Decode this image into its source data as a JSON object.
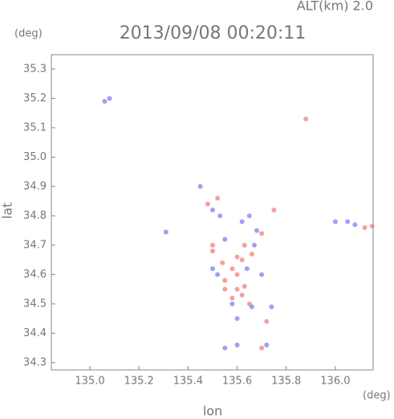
{
  "chart_data": {
    "type": "scatter",
    "annotation": "ALT(km) 2.0",
    "title": "2013/09/08 00:20:11",
    "y_unit": "(deg)",
    "x_unit": "(deg)",
    "ylabel": "lat",
    "xlabel": "lon",
    "xlim": [
      134.843,
      136.154
    ],
    "ylim": [
      34.275,
      35.349
    ],
    "xticks": [
      {
        "value": 135,
        "label": "135.0"
      },
      135.2,
      135.4,
      135.6,
      135.8,
      {
        "value": 136,
        "label": "136.0"
      }
    ],
    "yticks": [
      34.3,
      34.4,
      34.5,
      34.6,
      34.7,
      34.8,
      34.9,
      {
        "value": 35,
        "label": "35.0"
      },
      35.1,
      35.2,
      35.3
    ],
    "series": [
      {
        "color": "#f08080",
        "x": [
          135.88,
          136.15,
          136.12,
          135.6,
          135.62,
          135.58,
          135.55,
          135.6,
          135.63,
          135.58,
          135.65,
          135.72,
          135.7,
          135.5,
          135.52,
          135.48,
          135.63,
          135.66,
          135.54,
          135.6,
          135.75,
          135.7,
          135.55,
          135.62,
          135.5
        ],
        "y": [
          35.13,
          34.765,
          34.76,
          34.66,
          34.65,
          34.62,
          34.58,
          34.55,
          34.56,
          34.52,
          34.5,
          34.44,
          34.35,
          34.7,
          34.86,
          34.84,
          34.7,
          34.67,
          34.64,
          34.6,
          34.82,
          34.74,
          34.55,
          34.53,
          34.68
        ]
      },
      {
        "color": "#8080f0",
        "x": [
          135.06,
          135.08,
          135.31,
          136.0,
          136.05,
          136.08,
          135.62,
          135.65,
          135.68,
          135.55,
          135.5,
          135.58,
          135.66,
          135.74,
          135.72,
          135.6,
          135.55,
          135.45,
          135.5,
          135.53,
          135.64,
          135.7,
          135.52,
          135.67,
          135.6
        ],
        "y": [
          35.19,
          35.2,
          34.745,
          34.78,
          34.78,
          34.77,
          34.78,
          34.8,
          34.75,
          34.72,
          34.62,
          34.5,
          34.49,
          34.49,
          34.36,
          34.36,
          34.35,
          34.9,
          34.82,
          34.8,
          34.62,
          34.6,
          34.6,
          34.7,
          34.45
        ]
      }
    ]
  }
}
